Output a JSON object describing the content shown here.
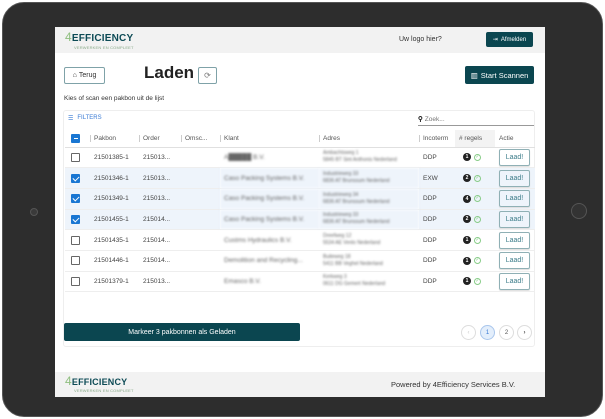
{
  "header": {
    "logo": "EFFICIENCY",
    "logo_prefix": "4",
    "logo_tagline": "VERWERKEN EN COMPLEET",
    "logo_placeholder": "Uw logo hier?",
    "logout_label": "Afmelden"
  },
  "page": {
    "back_label": "Terug",
    "title": "Laden",
    "start_scan_label": "Start Scannen",
    "instruction": "Kies of scan een pakbon uit de lijst"
  },
  "toolbar": {
    "filters_label": "FILTERS",
    "search_placeholder": "Zoek..."
  },
  "table": {
    "columns": [
      "Pakbon",
      "Order",
      "Omsc...",
      "Klant",
      "Adres",
      "Incoterm",
      "# regels",
      "Actie"
    ],
    "rows": [
      {
        "selected": false,
        "pakbon": "21501385-1",
        "order": "215013...",
        "omsc": "",
        "klant": "A█████ B.V.",
        "adres1": "Ambachtsweg 1",
        "adres2": "5845 BT Sint Anthonis Nederland",
        "incoterm": "DDP",
        "regels": "1",
        "action": "Laad!"
      },
      {
        "selected": true,
        "pakbon": "21501346-1",
        "order": "215013...",
        "omsc": "",
        "klant": "Caso Packing Systems B.V.",
        "adres1": "Industrieweg 33",
        "adres2": "6836 AT Brunssum Nederland",
        "incoterm": "EXW",
        "regels": "2",
        "action": "Laad!"
      },
      {
        "selected": true,
        "pakbon": "21501349-1",
        "order": "215013...",
        "omsc": "",
        "klant": "Caso Packing Systems B.V.",
        "adres1": "Industrieweg 34",
        "adres2": "6836 AT Brunssum Nederland",
        "incoterm": "DDP",
        "regels": "4",
        "action": "Laad!"
      },
      {
        "selected": true,
        "pakbon": "21501455-1",
        "order": "215014...",
        "omsc": "",
        "klant": "Caso Packing Systems B.V.",
        "adres1": "Industrieweg 33",
        "adres2": "6836 AT Brunssum Nederland",
        "incoterm": "DDP",
        "regels": "2",
        "action": "Laad!"
      },
      {
        "selected": false,
        "pakbon": "21501435-1",
        "order": "215014...",
        "omsc": "",
        "klant": "Custms Hydraulics B.V.",
        "adres1": "Dreefweg 12",
        "adres2": "5534 AE Venlo Nederland",
        "incoterm": "DDP",
        "regels": "1",
        "action": "Laad!"
      },
      {
        "selected": false,
        "pakbon": "21501446-1",
        "order": "215014...",
        "omsc": "",
        "klant": "Demolition and Recycling...",
        "adres1": "Buiteweg 18",
        "adres2": "5411 BB Veghel Nederland",
        "incoterm": "DDP",
        "regels": "1",
        "action": "Laad!"
      },
      {
        "selected": false,
        "pakbon": "21501379-1",
        "order": "215013...",
        "omsc": "",
        "klant": "Emasco B.V.",
        "adres1": "Kerkweg 3",
        "adres2": "0611 DG Gemert Nederland",
        "incoterm": "DDP",
        "regels": "1",
        "action": "Laad!"
      }
    ]
  },
  "footer": {
    "mark_loaded_label": "Markeer 3 pakbonnen als Geladen",
    "pages": [
      "1",
      "2"
    ],
    "current_page": "1",
    "powered_by": "Powered by 4Efficiency Services B.V."
  },
  "colors": {
    "brand": "#0b4650",
    "selected_row": "#eef4fb",
    "checkbox": "#1976d2"
  }
}
